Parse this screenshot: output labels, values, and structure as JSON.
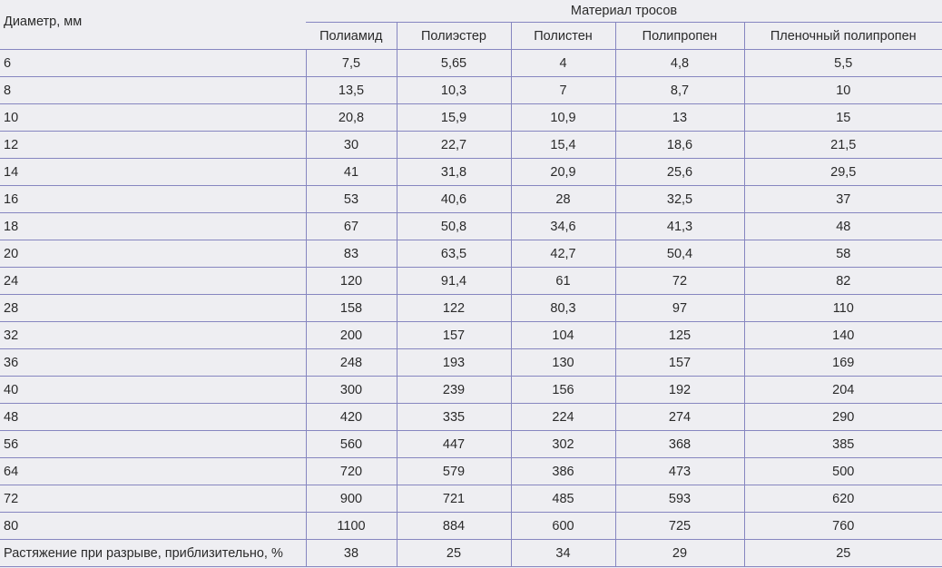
{
  "table": {
    "diameter_header": "Диаметр, мм",
    "group_header": "Материал тросов",
    "columns": [
      "Полиамид",
      "Полиэстер",
      "Полистен",
      "Полипропен",
      "Пленочный полипропен"
    ],
    "rows": [
      [
        "6",
        "7,5",
        "5,65",
        "4",
        "4,8",
        "5,5"
      ],
      [
        "8",
        "13,5",
        "10,3",
        "7",
        "8,7",
        "10"
      ],
      [
        "10",
        "20,8",
        "15,9",
        "10,9",
        "13",
        "15"
      ],
      [
        "12",
        "30",
        "22,7",
        "15,4",
        "18,6",
        "21,5"
      ],
      [
        "14",
        "41",
        "31,8",
        "20,9",
        "25,6",
        "29,5"
      ],
      [
        "16",
        "53",
        "40,6",
        "28",
        "32,5",
        "37"
      ],
      [
        "18",
        "67",
        "50,8",
        "34,6",
        "41,3",
        "48"
      ],
      [
        "20",
        "83",
        "63,5",
        "42,7",
        "50,4",
        "58"
      ],
      [
        "24",
        "120",
        "91,4",
        "61",
        "72",
        "82"
      ],
      [
        "28",
        "158",
        "122",
        "80,3",
        "97",
        "110"
      ],
      [
        "32",
        "200",
        "157",
        "104",
        "125",
        "140"
      ],
      [
        "36",
        "248",
        "193",
        "130",
        "157",
        "169"
      ],
      [
        "40",
        "300",
        "239",
        "156",
        "192",
        "204"
      ],
      [
        "48",
        "420",
        "335",
        "224",
        "274",
        "290"
      ],
      [
        "56",
        "560",
        "447",
        "302",
        "368",
        "385"
      ],
      [
        "64",
        "720",
        "579",
        "386",
        "473",
        "500"
      ],
      [
        "72",
        "900",
        "721",
        "485",
        "593",
        "620"
      ],
      [
        "80",
        "1100",
        "884",
        "600",
        "725",
        "760"
      ],
      [
        "Растяжение при разрыве, приблизительно, %",
        "38",
        "25",
        "34",
        "29",
        "25"
      ]
    ]
  }
}
